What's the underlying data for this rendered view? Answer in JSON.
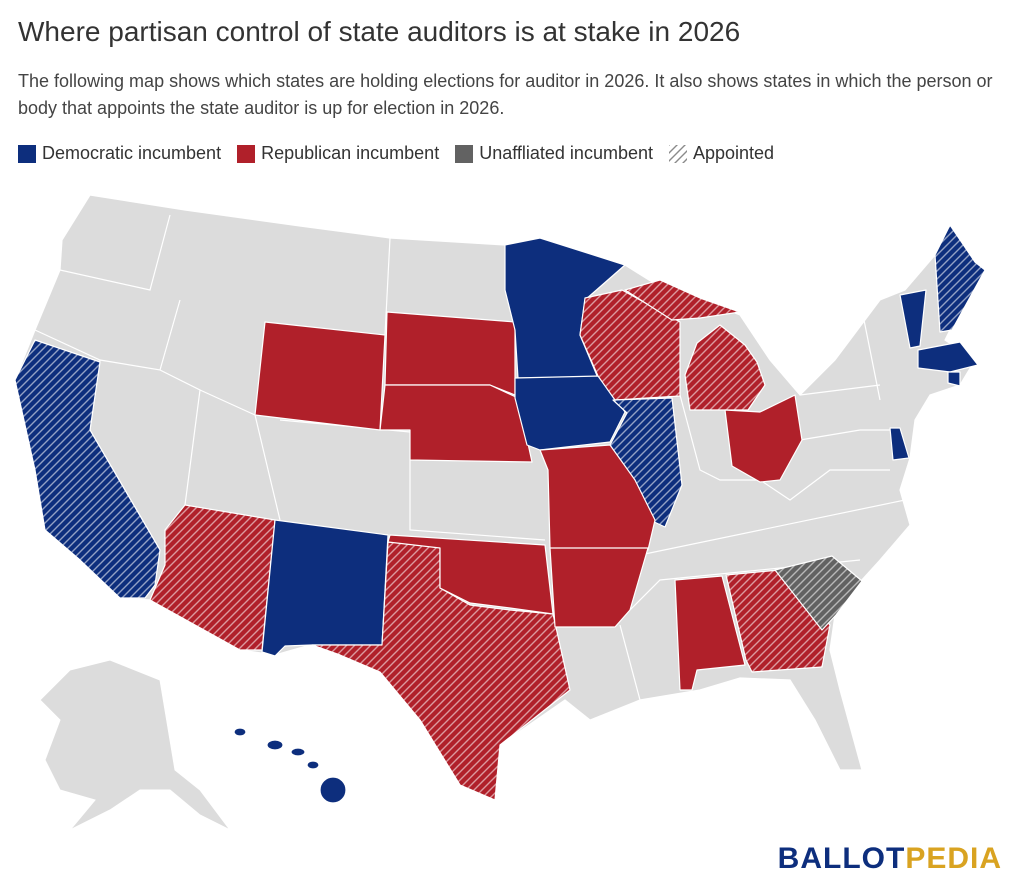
{
  "header": {
    "title": "Where partisan control of state auditors is at stake in 2026",
    "subtitle": "The following map shows which states are holding elections for auditor in 2026. It also shows states in which the person or body that appoints the state auditor is up for election in 2026."
  },
  "legend": [
    {
      "label": "Democratic incumbent",
      "color": "#0d2e7d"
    },
    {
      "label": "Republican incumbent",
      "color": "#b0202a"
    },
    {
      "label": "Unaffliated incumbent",
      "color": "#626262"
    },
    {
      "label": "Appointed",
      "color": "#8a8a8a"
    }
  ],
  "logo": {
    "first": "BALLOT",
    "second": "PEDIA"
  }
}
